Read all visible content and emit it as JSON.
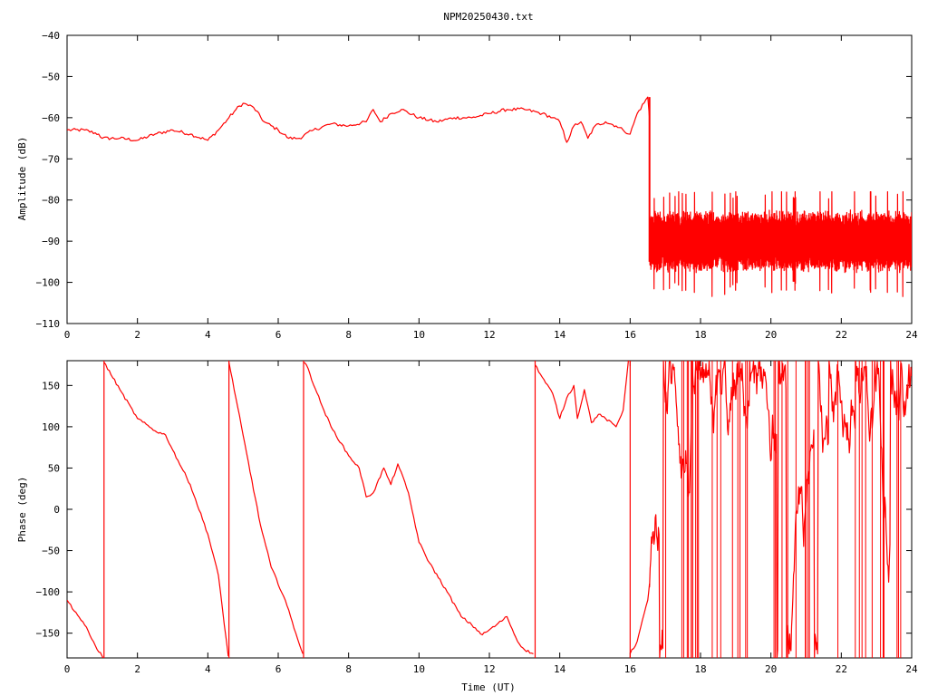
{
  "title": "NPM20250430.txt",
  "colors": {
    "trace": "#ff0000",
    "axis": "#000000",
    "background": "#ffffff"
  },
  "chart_data": [
    {
      "type": "line",
      "ylabel": "Amplitude (dB)",
      "xlabel": "",
      "xlim": [
        0,
        24
      ],
      "ylim": [
        -110,
        -40
      ],
      "xticks": [
        0,
        2,
        4,
        6,
        8,
        10,
        12,
        14,
        16,
        18,
        20,
        22,
        24
      ],
      "yticks": [
        -110,
        -100,
        -90,
        -80,
        -70,
        -60,
        -50,
        -40
      ],
      "grid": false,
      "series": [
        {
          "x": [
            0,
            0.5,
            0.9,
            1.0,
            1.5,
            2.0,
            2.5,
            3.0,
            3.5,
            4.0,
            4.3,
            4.6,
            4.8,
            5.0,
            5.3,
            5.6,
            6.0,
            6.3,
            6.6,
            7.0,
            7.5,
            8.0,
            8.5,
            8.7,
            8.9,
            9.2,
            9.5,
            10.0,
            10.5,
            11.0,
            11.5,
            12.0,
            12.5,
            13.0,
            13.5,
            13.8,
            14.0,
            14.2,
            14.4,
            14.6,
            14.8,
            15.0,
            15.3,
            15.6,
            15.8,
            16.0,
            16.2,
            16.5,
            16.55
          ],
          "y": [
            -63,
            -63,
            -64,
            -65,
            -65,
            -65.5,
            -64,
            -63,
            -64,
            -65.5,
            -63,
            -60,
            -58,
            -56.5,
            -57.5,
            -61,
            -63,
            -65,
            -65,
            -63,
            -61.5,
            -62,
            -61,
            -58,
            -61,
            -59,
            -58,
            -60,
            -61,
            -60,
            -60,
            -59,
            -58,
            -58,
            -59,
            -60,
            -61,
            -66,
            -62,
            -61,
            -65,
            -62,
            -61,
            -62,
            -63,
            -64,
            -59,
            -55,
            -60
          ],
          "noise_band": {
            "x_start": 16.55,
            "x_end": 24,
            "center": -90,
            "range": [
              -97,
              -78
            ]
          }
        }
      ]
    },
    {
      "type": "line",
      "ylabel": "Phase (deg)",
      "xlabel": "Time (UT)",
      "xlim": [
        0,
        24
      ],
      "ylim": [
        -180,
        180
      ],
      "xticks": [
        0,
        2,
        4,
        6,
        8,
        10,
        12,
        14,
        16,
        18,
        20,
        22,
        24
      ],
      "yticks": [
        -150,
        -100,
        -50,
        0,
        50,
        100,
        150
      ],
      "grid": false,
      "series": [
        {
          "x": [
            0,
            0.5,
            0.8,
            1.0,
            1.02,
            1.05,
            1.5,
            2.0,
            2.5,
            2.8,
            3.0,
            3.5,
            4.0,
            4.3,
            4.58,
            4.6,
            5.0,
            5.5,
            5.8,
            6.2,
            6.5,
            6.7,
            6.72,
            6.8,
            7.2,
            7.5,
            8.0,
            8.3,
            8.5,
            8.7,
            9.0,
            9.2,
            9.4,
            9.7,
            10.0,
            10.3,
            10.8,
            11.2,
            11.5,
            11.8,
            12.2,
            12.5,
            12.8,
            13.0,
            13.25,
            13.3,
            13.5,
            13.8,
            14.0,
            14.2,
            14.4,
            14.5,
            14.7,
            14.9,
            15.1,
            15.3,
            15.6,
            15.8,
            15.95,
            16.0,
            16.2,
            16.5,
            16.55
          ],
          "y": [
            -110,
            -140,
            -165,
            -178,
            -180,
            178,
            145,
            110,
            95,
            90,
            72,
            30,
            -30,
            -80,
            -178,
            178,
            90,
            -20,
            -70,
            -110,
            -150,
            -175,
            178,
            175,
            130,
            100,
            65,
            50,
            15,
            20,
            50,
            30,
            55,
            20,
            -40,
            -65,
            -100,
            -130,
            -140,
            -152,
            -140,
            -130,
            -160,
            -170,
            -175,
            175,
            160,
            140,
            110,
            135,
            150,
            110,
            145,
            105,
            115,
            110,
            100,
            120,
            180,
            -175,
            -160,
            -110,
            -90
          ],
          "noise_band": {
            "x_start": 16.55,
            "x_end": 24,
            "range": [
              -180,
              180
            ]
          }
        }
      ]
    }
  ]
}
